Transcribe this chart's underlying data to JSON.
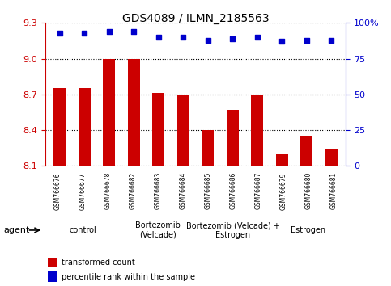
{
  "title": "GDS4089 / ILMN_2185563",
  "samples": [
    "GSM766676",
    "GSM766677",
    "GSM766678",
    "GSM766682",
    "GSM766683",
    "GSM766684",
    "GSM766685",
    "GSM766686",
    "GSM766687",
    "GSM766679",
    "GSM766680",
    "GSM766681"
  ],
  "bar_values": [
    8.75,
    8.75,
    9.0,
    9.0,
    8.71,
    8.7,
    8.4,
    8.57,
    8.69,
    8.2,
    8.35,
    8.24
  ],
  "scatter_values": [
    93,
    93,
    94,
    94,
    90,
    90,
    88,
    89,
    90,
    87,
    88,
    88
  ],
  "ylim_left": [
    8.1,
    9.3
  ],
  "ylim_right": [
    0,
    100
  ],
  "yticks_left": [
    8.1,
    8.4,
    8.7,
    9.0,
    9.3
  ],
  "yticks_right": [
    0,
    25,
    50,
    75,
    100
  ],
  "bar_color": "#cc0000",
  "scatter_color": "#0000cc",
  "groups": [
    {
      "label": "control",
      "start": 0,
      "end": 3,
      "color": "#ccffcc"
    },
    {
      "label": "Bortezomib\n(Velcade)",
      "start": 3,
      "end": 6,
      "color": "#ccffcc"
    },
    {
      "label": "Bortezomib (Velcade) +\nEstrogen",
      "start": 6,
      "end": 9,
      "color": "#ccffcc"
    },
    {
      "label": "Estrogen",
      "start": 9,
      "end": 12,
      "color": "#33dd33"
    }
  ],
  "group_colors": [
    "#ccffcc",
    "#ccffcc",
    "#ccffcc",
    "#33dd33"
  ],
  "agent_label": "agent",
  "legend_bar_label": "transformed count",
  "legend_scatter_label": "percentile rank within the sample",
  "left_tick_color": "#cc0000",
  "right_tick_color": "#0000cc",
  "title_fontsize": 10,
  "sample_bg": "#cccccc",
  "sample_fontsize": 5.5,
  "group_fontsize": 7,
  "agent_fontsize": 8,
  "legend_fontsize": 7
}
